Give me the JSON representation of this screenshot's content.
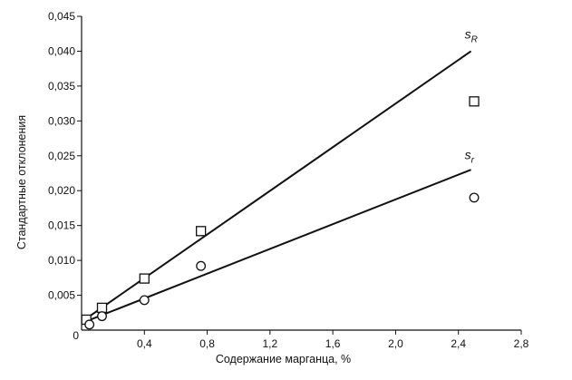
{
  "chart_data": {
    "type": "scatter",
    "xlabel": "Содержание марганца, %",
    "ylabel": "Стандартные отклонения",
    "xlim": [
      0,
      2.8
    ],
    "ylim": [
      0,
      0.045
    ],
    "x_ticks": [
      {
        "value": 0.4,
        "label": "0,4"
      },
      {
        "value": 0.8,
        "label": "0,8"
      },
      {
        "value": 1.2,
        "label": "1,2"
      },
      {
        "value": 1.6,
        "label": "1,6"
      },
      {
        "value": 2.0,
        "label": "2,0"
      },
      {
        "value": 2.4,
        "label": "2,4"
      },
      {
        "value": 2.8,
        "label": "2,8"
      }
    ],
    "y_ticks": [
      {
        "value": 0.005,
        "label": "0,005"
      },
      {
        "value": 0.01,
        "label": "0,010"
      },
      {
        "value": 0.015,
        "label": "0,015"
      },
      {
        "value": 0.02,
        "label": "0,020"
      },
      {
        "value": 0.025,
        "label": "0,025"
      },
      {
        "value": 0.03,
        "label": "0,030"
      },
      {
        "value": 0.035,
        "label": "0,035"
      },
      {
        "value": 0.04,
        "label": "0,040"
      },
      {
        "value": 0.045,
        "label": "0,045"
      }
    ],
    "origin_label": "0",
    "grid": false,
    "series": [
      {
        "name": "sR",
        "label_main": "s",
        "label_sub": "R",
        "marker": "square",
        "points": [
          {
            "x": 0.03,
            "y": 0.0015
          },
          {
            "x": 0.13,
            "y": 0.0032
          },
          {
            "x": 0.4,
            "y": 0.0074
          },
          {
            "x": 0.76,
            "y": 0.0142
          },
          {
            "x": 2.5,
            "y": 0.0328
          }
        ],
        "fit_line": [
          {
            "x": 0.0,
            "y": 0.0012
          },
          {
            "x": 2.48,
            "y": 0.04
          }
        ],
        "label_at": {
          "x": 2.44,
          "y": 0.0418
        }
      },
      {
        "name": "sr",
        "label_main": "s",
        "label_sub": "r",
        "marker": "circle",
        "points": [
          {
            "x": 0.05,
            "y": 0.0008
          },
          {
            "x": 0.13,
            "y": 0.002
          },
          {
            "x": 0.4,
            "y": 0.0043
          },
          {
            "x": 0.76,
            "y": 0.0092
          },
          {
            "x": 2.5,
            "y": 0.019
          }
        ],
        "fit_line": [
          {
            "x": 0.0,
            "y": 0.001
          },
          {
            "x": 2.48,
            "y": 0.023
          }
        ],
        "label_at": {
          "x": 2.44,
          "y": 0.0245
        }
      }
    ]
  }
}
